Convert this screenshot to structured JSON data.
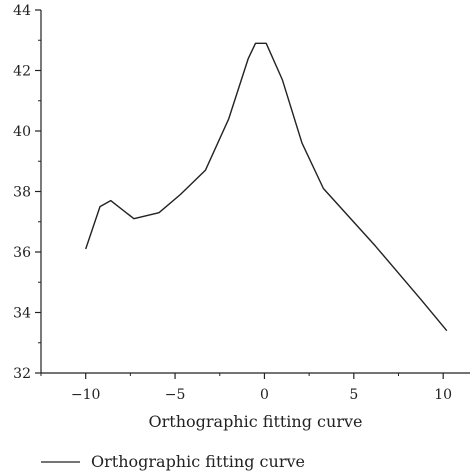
{
  "chart_data": {
    "type": "line",
    "xlabel": "Orthographic fitting curve",
    "ylabel": "",
    "xlim": [
      -12.5,
      11.5
    ],
    "ylim": [
      32,
      44
    ],
    "xticks": [
      -10,
      -5,
      0,
      5,
      10
    ],
    "xtick_labels": [
      "−10",
      "−5",
      "0",
      "5",
      "10"
    ],
    "yticks": [
      32,
      34,
      36,
      38,
      40,
      42,
      44
    ],
    "ytick_labels": [
      "32",
      "34",
      "36",
      "38",
      "40",
      "42",
      "44"
    ],
    "grid": false,
    "legend_position": "bottom-left",
    "series": [
      {
        "name": "Orthographic fitting curve",
        "color": "#222222",
        "x": [
          -10.0,
          -9.2,
          -8.6,
          -7.3,
          -5.9,
          -4.7,
          -3.3,
          -2.0,
          -0.9,
          -0.5,
          0.1,
          1.0,
          2.1,
          3.3,
          6.2,
          8.8,
          10.2
        ],
        "y": [
          36.1,
          37.5,
          37.7,
          37.1,
          37.3,
          37.9,
          38.7,
          40.4,
          42.4,
          42.9,
          42.9,
          41.7,
          39.6,
          38.1,
          36.2,
          34.4,
          33.4
        ]
      }
    ]
  }
}
